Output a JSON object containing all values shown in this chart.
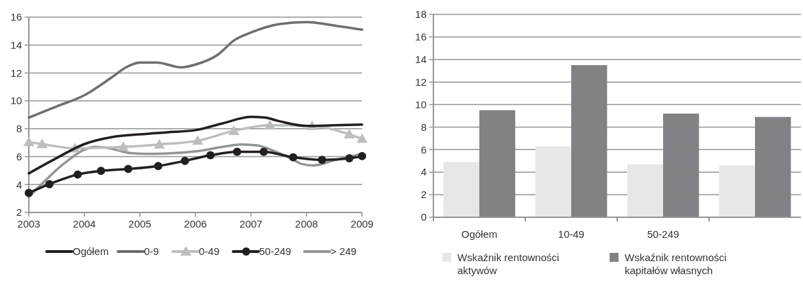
{
  "chart_data": [
    {
      "type": "line",
      "xlim": [
        2003,
        2009
      ],
      "xticks": [
        2003,
        2004,
        2005,
        2006,
        2007,
        2008,
        2009
      ],
      "ylim": [
        2,
        16
      ],
      "yticks": [
        2,
        4,
        6,
        8,
        10,
        12,
        14,
        16
      ],
      "grid": "y",
      "legend": "bottom",
      "series": [
        {
          "name": "Ogółem",
          "color": "#231f20",
          "marker": "none",
          "x": [
            2003,
            2003.5,
            2004,
            2004.5,
            2005,
            2005.5,
            2006,
            2006.5,
            2007,
            2007.25,
            2007.5,
            2008,
            2008.5,
            2009
          ],
          "values": [
            4.8,
            5.9,
            6.9,
            7.4,
            7.6,
            7.75,
            7.9,
            8.4,
            8.85,
            8.8,
            8.55,
            8.2,
            8.25,
            8.3
          ]
        },
        {
          "name": "0-9",
          "color": "#6d6e71",
          "marker": "none",
          "x": [
            2003,
            2003.5,
            2004,
            2004.5,
            2004.75,
            2005,
            2005.3,
            2005.75,
            2006,
            2006.4,
            2006.7,
            2007,
            2007.5,
            2008,
            2008.5,
            2009
          ],
          "values": [
            8.8,
            9.6,
            10.4,
            11.7,
            12.4,
            12.75,
            12.75,
            12.4,
            12.6,
            13.3,
            14.35,
            14.9,
            15.5,
            15.65,
            15.4,
            15.1
          ]
        },
        {
          "name": "0-49",
          "color": "#bcbec0",
          "marker": "triangle",
          "x": [
            2003,
            2003.24,
            2003.83,
            2004.7,
            2005.35,
            2006.04,
            2006.69,
            2007.34,
            2008.1,
            2008.77,
            2009
          ],
          "values": [
            7.05,
            6.9,
            6.6,
            6.7,
            6.88,
            7.14,
            7.85,
            8.25,
            8.2,
            7.6,
            7.28
          ]
        },
        {
          "name": "50-249",
          "color": "#231f20",
          "marker": "circle",
          "x": [
            2003,
            2003.37,
            2003.88,
            2004.3,
            2004.79,
            2005.33,
            2005.81,
            2006.27,
            2006.75,
            2007.23,
            2007.76,
            2008.28,
            2008.77,
            2009
          ],
          "values": [
            3.4,
            4.03,
            4.72,
            4.98,
            5.12,
            5.33,
            5.7,
            6.1,
            6.35,
            6.35,
            5.95,
            5.77,
            5.88,
            6.04
          ]
        },
        {
          "name": "> 249",
          "color": "#939598",
          "marker": "none",
          "x": [
            2003,
            2003.68,
            2004,
            2004.2,
            2004.45,
            2004.84,
            2005.15,
            2006.04,
            2006.49,
            2006.83,
            2007.12,
            2007.34,
            2007.74,
            2007.92,
            2008.12,
            2008.5,
            2009
          ],
          "values": [
            3.1,
            5.65,
            6.5,
            6.7,
            6.6,
            6.25,
            6.2,
            6.4,
            6.7,
            6.88,
            6.8,
            6.53,
            5.83,
            5.47,
            5.37,
            5.74,
            6.2
          ]
        }
      ]
    },
    {
      "type": "bar",
      "categories": [
        "Ogółem",
        "10-49",
        "50-249",
        null
      ],
      "ylim": [
        0,
        18
      ],
      "yticks": [
        0,
        2,
        4,
        6,
        8,
        10,
        12,
        14,
        16,
        18
      ],
      "grid": "y",
      "legend": "bottom",
      "series": [
        {
          "name": "Wskaźnik rentowności aktywów",
          "color": "#e6e7e8",
          "values": [
            4.9,
            6.3,
            4.7,
            4.6
          ]
        },
        {
          "name": "Wskaźnik rentowności kapitałów własnych",
          "color": "#808285",
          "values": [
            9.5,
            13.5,
            9.2,
            8.9
          ]
        }
      ]
    }
  ]
}
